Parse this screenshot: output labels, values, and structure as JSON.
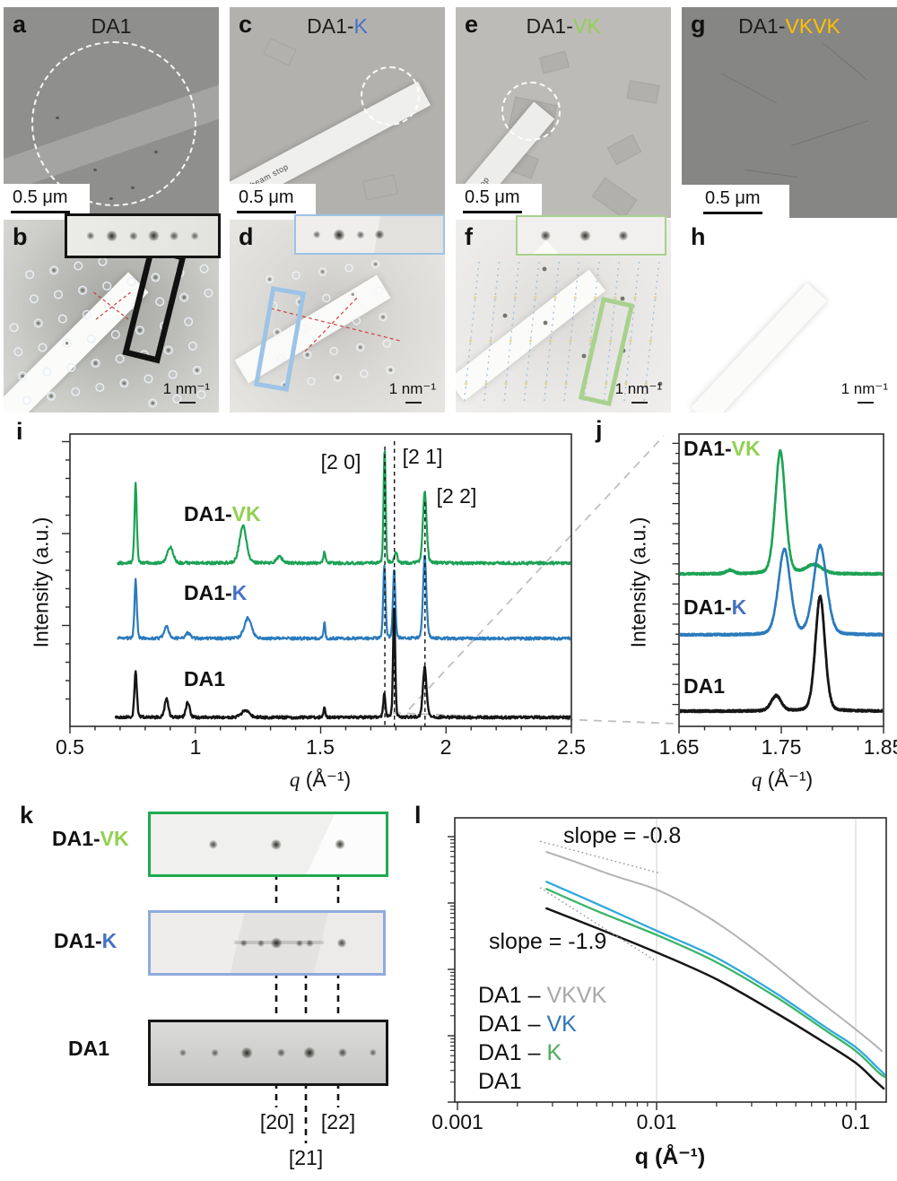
{
  "figure": {
    "colors": {
      "K": "#4472c4",
      "VK": "#92d050",
      "VKVK": "#ffc000",
      "curve_blue": "#2b7abc",
      "curve_green": "#1ca254",
      "curve_black": "#161616",
      "l_blue": "#31a9dc",
      "l_green": "#3cb469",
      "l_gray": "#b3b3b3",
      "legend_VKVK": "#a8a8a8",
      "legend_VK": "#2e75b6",
      "legend_K": "#4bae57"
    },
    "row1": {
      "a": {
        "letter": "a",
        "title_prefix": "DA1",
        "title_suffix": "",
        "scale_label": "0.5 μm"
      },
      "c": {
        "letter": "c",
        "title_prefix": "DA1-",
        "title_suffix": "K",
        "scale_label": "0.5 μm",
        "beam_stop": "beam stop"
      },
      "e": {
        "letter": "e",
        "title_prefix": "DA1-",
        "title_suffix": "VK",
        "scale_label": "0.5 μm",
        "beam_stop": "beam stop"
      },
      "g": {
        "letter": "g",
        "title_prefix": "DA1-",
        "title_suffix": "VKVK",
        "scale_label": "0.5 μm"
      }
    },
    "row2": {
      "b": {
        "letter": "b",
        "scale_label": "1 nm⁻¹"
      },
      "d": {
        "letter": "d",
        "scale_label": "1 nm⁻¹"
      },
      "f": {
        "letter": "f",
        "scale_label": "1 nm⁻¹"
      },
      "h": {
        "letter": "h",
        "scale_label": "1 nm⁻¹"
      }
    },
    "insets": {
      "b": {
        "spots": [
          {
            "x": 0.154,
            "i": 0.45
          },
          {
            "x": 0.296,
            "i": 0.95
          },
          {
            "x": 0.438,
            "i": 0.5
          },
          {
            "x": 0.574,
            "i": 0.9
          },
          {
            "x": 0.71,
            "i": 0.55
          },
          {
            "x": 0.846,
            "i": 0.4
          }
        ]
      },
      "d": {
        "spots": [
          {
            "x": 0.14,
            "i": 0.4
          },
          {
            "x": 0.29,
            "i": 1.0
          },
          {
            "x": 0.44,
            "i": 0.45
          },
          {
            "x": 0.57,
            "i": 0.7
          }
        ]
      },
      "f": {
        "spots": [
          {
            "x": 0.19,
            "i": 0.8
          },
          {
            "x": 0.46,
            "i": 0.9
          },
          {
            "x": 0.72,
            "i": 0.75
          }
        ]
      }
    }
  },
  "panel_k": {
    "letter": "k",
    "rows": [
      {
        "label_prefix": "DA1-",
        "label_suffix": "VK",
        "spots": [
          {
            "x": 0.266,
            "i": 0.65
          },
          {
            "x": 0.535,
            "i": 0.9
          },
          {
            "x": 0.805,
            "i": 0.85
          }
        ]
      },
      {
        "label_prefix": "DA1-",
        "label_suffix": "K",
        "spots": [
          {
            "x": 0.4,
            "i": 0.35
          },
          {
            "x": 0.474,
            "i": 0.3
          },
          {
            "x": 0.54,
            "i": 0.95
          },
          {
            "x": 0.64,
            "i": 0.3
          },
          {
            "x": 0.684,
            "i": 0.35
          },
          {
            "x": 0.822,
            "i": 0.7
          }
        ]
      },
      {
        "label_prefix": "DA1",
        "label_suffix": "",
        "spots": [
          {
            "x": 0.137,
            "i": 0.3
          },
          {
            "x": 0.273,
            "i": 0.4
          },
          {
            "x": 0.41,
            "i": 0.95
          },
          {
            "x": 0.555,
            "i": 0.45
          },
          {
            "x": 0.676,
            "i": 1.0
          },
          {
            "x": 0.816,
            "i": 0.6
          },
          {
            "x": 0.945,
            "i": 0.35
          }
        ]
      }
    ],
    "bracket_labels": [
      "[20]",
      "[21]",
      "[22]"
    ]
  },
  "chart_data": [
    {
      "id": "i",
      "type": "line",
      "letter": "i",
      "ylabel": "Intensity (a.u.)",
      "xlabel_q": "q",
      "xlabel_rest": " (Å⁻¹)",
      "xlim": [
        0.5,
        2.5
      ],
      "xticks": [
        "0.5",
        "1",
        "1.5",
        "2",
        "2.5"
      ],
      "peak_labels": [
        {
          "text": "[2 0]",
          "q": 1.756
        },
        {
          "text": "[2 1]",
          "q": 1.794
        },
        {
          "text": "[2 2]",
          "q": 1.916
        }
      ],
      "series": [
        {
          "name": "DA1-VK",
          "label_prefix": "DA1-",
          "label_suffix": "VK",
          "base": 182,
          "peaks": [
            [
              0.762,
              90,
              0.0046
            ],
            [
              0.9,
              18,
              0.012
            ],
            [
              1.19,
              42,
              0.014
            ],
            [
              1.335,
              7,
              0.012
            ],
            [
              1.515,
              12,
              0.0045
            ],
            [
              1.755,
              127,
              0.0042
            ],
            [
              1.8,
              12,
              0.006
            ],
            [
              1.915,
              80,
              0.0075
            ]
          ]
        },
        {
          "name": "DA1-K",
          "label_prefix": "DA1-",
          "label_suffix": "K",
          "base": 98,
          "peaks": [
            [
              0.762,
              65,
              0.0048
            ],
            [
              0.885,
              13,
              0.01
            ],
            [
              0.97,
              6,
              0.01
            ],
            [
              1.21,
              23,
              0.015
            ],
            [
              1.515,
              18,
              0.0035
            ],
            [
              1.754,
              80,
              0.0048
            ],
            [
              1.793,
              78,
              0.0048
            ],
            [
              1.915,
              92,
              0.0068
            ]
          ]
        },
        {
          "name": "DA1",
          "label_prefix": "DA1",
          "label_suffix": "",
          "base": 10,
          "peaks": [
            [
              0.762,
              52,
              0.005
            ],
            [
              0.885,
              21,
              0.0075
            ],
            [
              0.97,
              17,
              0.0075
            ],
            [
              1.2,
              8,
              0.015
            ],
            [
              1.515,
              10,
              0.004
            ],
            [
              1.754,
              26,
              0.0045
            ],
            [
              1.793,
              126,
              0.0042
            ],
            [
              1.915,
              56,
              0.0075
            ]
          ]
        }
      ]
    },
    {
      "id": "j",
      "type": "line",
      "letter": "j",
      "ylabel": "Intensity (a.u.)",
      "xlabel_q": "q",
      "xlabel_rest": " (Å⁻¹)",
      "xlim": [
        1.65,
        1.85
      ],
      "xticks": [
        "1.65",
        "1.75",
        "1.85"
      ],
      "series": [
        {
          "name": "DA1-VK",
          "label_prefix": "DA1-",
          "label_suffix": "VK",
          "base": 170,
          "peaks": [
            [
              1.7,
              4,
              0.004
            ],
            [
              1.749,
              137,
              0.005
            ],
            [
              1.782,
              10,
              0.008
            ]
          ]
        },
        {
          "name": "DA1-K",
          "label_prefix": "DA1-",
          "label_suffix": "K",
          "base": 102,
          "peaks": [
            [
              1.753,
              95,
              0.006
            ],
            [
              1.788,
              99,
              0.0065
            ]
          ]
        },
        {
          "name": "DA1",
          "label_prefix": "DA1",
          "label_suffix": "",
          "base": 17,
          "peaks": [
            [
              1.745,
              17,
              0.005
            ],
            [
              1.788,
              128,
              0.0048
            ]
          ]
        }
      ]
    },
    {
      "id": "l",
      "type": "line",
      "letter": "l",
      "xlabel": "q (Å⁻¹)",
      "xlim": [
        0.001,
        0.15
      ],
      "xscale": "log",
      "yscale": "log",
      "xticks": [
        "0.001",
        "0.01",
        "0.1"
      ],
      "series": [
        {
          "name": "DA1-VKVK",
          "points": [
            [
              0.0028,
              5900
            ],
            [
              0.004,
              4070
            ],
            [
              0.006,
              2630
            ],
            [
              0.01,
              1590
            ],
            [
              0.015,
              860
            ],
            [
              0.022,
              420
            ],
            [
              0.035,
              150
            ],
            [
              0.06,
              41
            ],
            [
              0.09,
              16
            ],
            [
              0.12,
              8.0
            ],
            [
              0.135,
              5.9
            ]
          ]
        },
        {
          "name": "DA1-VK",
          "points": [
            [
              0.0028,
              2090
            ],
            [
              0.005,
              975
            ],
            [
              0.01,
              382
            ],
            [
              0.02,
              150
            ],
            [
              0.04,
              43
            ],
            [
              0.07,
              13.6
            ],
            [
              0.1,
              6.7
            ],
            [
              0.13,
              3.2
            ],
            [
              0.14,
              2.6
            ]
          ]
        },
        {
          "name": "DA1-K",
          "points": [
            [
              0.0028,
              1630
            ],
            [
              0.005,
              760
            ],
            [
              0.01,
              330
            ],
            [
              0.02,
              128
            ],
            [
              0.04,
              38
            ],
            [
              0.07,
              12.2
            ],
            [
              0.1,
              5.9
            ],
            [
              0.13,
              2.8
            ],
            [
              0.14,
              2.4
            ]
          ]
        },
        {
          "name": "DA1",
          "points": [
            [
              0.0028,
              830
            ],
            [
              0.005,
              420
            ],
            [
              0.01,
              180
            ],
            [
              0.02,
              71
            ],
            [
              0.04,
              21.8
            ],
            [
              0.07,
              7.8
            ],
            [
              0.1,
              3.9
            ],
            [
              0.125,
              2.1
            ],
            [
              0.138,
              1.6
            ]
          ]
        }
      ],
      "slope_refs": [
        {
          "label": "slope = -0.8",
          "slope": -0.8,
          "q1": 0.0026,
          "q2": 0.0105,
          "I1": 8500
        },
        {
          "label": "slope = -1.9",
          "slope": -1.9,
          "q1": 0.0026,
          "q2": 0.0098,
          "I1": 1700
        }
      ],
      "legend": [
        {
          "prefix": "DA1 – ",
          "suffix": "VKVK"
        },
        {
          "prefix": "DA1 – ",
          "suffix": "VK"
        },
        {
          "prefix": "DA1 – ",
          "suffix": "K"
        },
        {
          "prefix": "DA1",
          "suffix": ""
        }
      ]
    }
  ]
}
